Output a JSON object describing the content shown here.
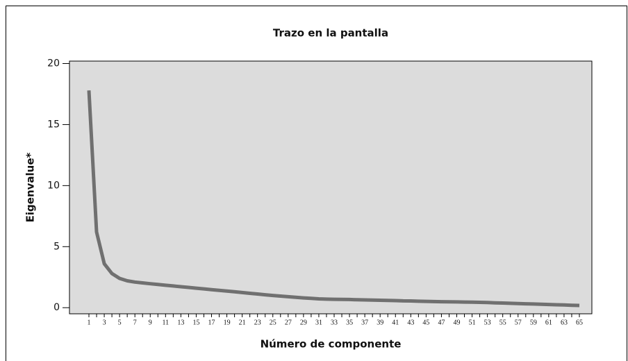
{
  "chart_data": {
    "type": "line",
    "title": "Trazo en la pantalla",
    "x_label": "Número de componente",
    "y_label": "Eigenvalue*",
    "categories": [
      1,
      null,
      3,
      null,
      5,
      null,
      7,
      null,
      9,
      null,
      11,
      null,
      13,
      null,
      15,
      null,
      17,
      null,
      19,
      null,
      21,
      null,
      23,
      null,
      25,
      null,
      27,
      null,
      29,
      null,
      31,
      null,
      33,
      null,
      35,
      null,
      37,
      null,
      39,
      null,
      41,
      null,
      43,
      null,
      45,
      null,
      47,
      null,
      49,
      null,
      51,
      null,
      53,
      null,
      55,
      null,
      57,
      null,
      59,
      null,
      61,
      null,
      63,
      null,
      65
    ],
    "values": [
      17.8,
      6.2,
      3.6,
      2.8,
      2.4,
      2.2,
      2.1,
      2.03,
      1.96,
      1.9,
      1.84,
      1.78,
      1.72,
      1.66,
      1.6,
      1.54,
      1.48,
      1.42,
      1.36,
      1.3,
      1.24,
      1.18,
      1.12,
      1.06,
      1.0,
      0.95,
      0.9,
      0.85,
      0.8,
      0.76,
      0.72,
      0.7,
      0.69,
      0.68,
      0.67,
      0.65,
      0.64,
      0.62,
      0.61,
      0.59,
      0.58,
      0.56,
      0.55,
      0.53,
      0.52,
      0.5,
      0.49,
      0.48,
      0.47,
      0.46,
      0.45,
      0.44,
      0.42,
      0.4,
      0.38,
      0.36,
      0.34,
      0.32,
      0.3,
      0.28,
      0.26,
      0.24,
      0.22,
      0.2,
      0.18
    ],
    "color": "#707070",
    "ylim": [
      -0.5,
      20.2
    ],
    "yticks": [
      0,
      5,
      10,
      15,
      20
    ],
    "grid": false
  }
}
